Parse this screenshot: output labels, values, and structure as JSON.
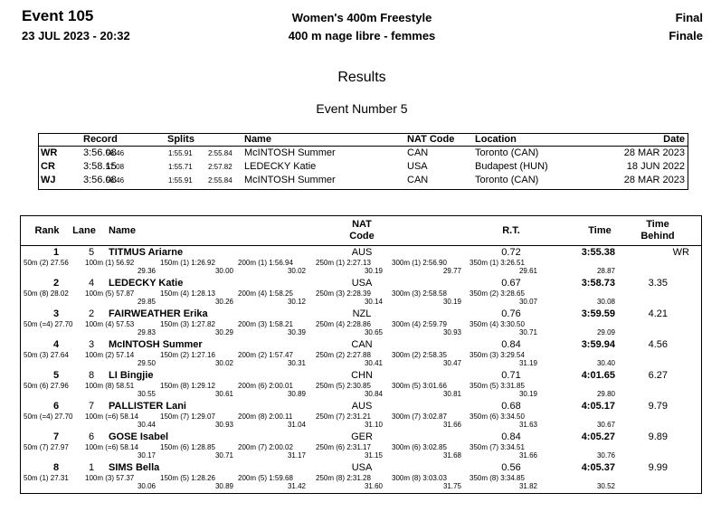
{
  "header": {
    "event": "Event 105",
    "datetime": "23 JUL 2023 - 20:32",
    "title": "Women's 400m Freestyle",
    "title_fr": "400 m nage libre - femmes",
    "round": "Final",
    "round_fr": "Finale"
  },
  "section": "Results",
  "event_number": "Event Number 5",
  "records": {
    "headers": [
      "Record",
      "Splits",
      "Name",
      "NAT Code",
      "Location",
      "Date"
    ],
    "rows": [
      {
        "code": "WR",
        "time": "3:56.08",
        "splits": [
          "56.46",
          "1:55.91",
          "2:55.84"
        ],
        "name": "McINTOSH Summer",
        "nat": "CAN",
        "location": "Toronto (CAN)",
        "date": "28 MAR 2023"
      },
      {
        "code": "CR",
        "time": "3:58.15",
        "splits": [
          "57.08",
          "1:55.71",
          "2:57.82"
        ],
        "name": "LEDECKY Katie",
        "nat": "USA",
        "location": "Budapest (HUN)",
        "date": "18 JUN 2022"
      },
      {
        "code": "WJ",
        "time": "3:56.08",
        "splits": [
          "56.46",
          "1:55.91",
          "2:55.84"
        ],
        "name": "McINTOSH Summer",
        "nat": "CAN",
        "location": "Toronto (CAN)",
        "date": "28 MAR 2023"
      }
    ]
  },
  "results": {
    "headers": {
      "rank": "Rank",
      "lane": "Lane",
      "name": "Name",
      "nat": [
        "NAT",
        "Code"
      ],
      "rt": "R.T.",
      "time": "Time",
      "behind": [
        "Time",
        "Behind"
      ]
    },
    "rows": [
      {
        "rank": "1",
        "lane": "5",
        "name": "TITMUS Ariarne",
        "nat": "AUS",
        "rt": "0.72",
        "time": "3:55.38",
        "record": "WR",
        "first": "50m (2) 27.56",
        "splits": [
          [
            "100m (1) 56.92",
            "29.36"
          ],
          [
            "150m (1) 1:26.92",
            "30.00"
          ],
          [
            "200m (1) 1:56.94",
            "30.02"
          ],
          [
            "250m (1) 2:27.13",
            "30.19"
          ],
          [
            "300m (1) 2:56.90",
            "29.77"
          ],
          [
            "350m (1) 3:26.51",
            "29.61"
          ]
        ],
        "last": "28.87"
      },
      {
        "rank": "2",
        "lane": "4",
        "name": "LEDECKY Katie",
        "nat": "USA",
        "rt": "0.67",
        "time": "3:58.73",
        "behind": "3.35",
        "first": "50m (8) 28.02",
        "splits": [
          [
            "100m (5) 57.87",
            "29.85"
          ],
          [
            "150m (4) 1:28.13",
            "30.26"
          ],
          [
            "200m (4) 1:58.25",
            "30.12"
          ],
          [
            "250m (3) 2:28.39",
            "30.14"
          ],
          [
            "300m (3) 2:58.58",
            "30.19"
          ],
          [
            "350m (2) 3:28.65",
            "30.07"
          ]
        ],
        "last": "30.08"
      },
      {
        "rank": "3",
        "lane": "2",
        "name": "FAIRWEATHER Erika",
        "nat": "NZL",
        "rt": "0.76",
        "time": "3:59.59",
        "behind": "4.21",
        "first": "50m (=4) 27.70",
        "splits": [
          [
            "100m (4) 57.53",
            "29.83"
          ],
          [
            "150m (3) 1:27.82",
            "30.29"
          ],
          [
            "200m (3) 1:58.21",
            "30.39"
          ],
          [
            "250m (4) 2:28.86",
            "30.65"
          ],
          [
            "300m (4) 2:59.79",
            "30.93"
          ],
          [
            "350m (4) 3:30.50",
            "30.71"
          ]
        ],
        "last": "29.09"
      },
      {
        "rank": "4",
        "lane": "3",
        "name": "McINTOSH Summer",
        "nat": "CAN",
        "rt": "0.84",
        "time": "3:59.94",
        "behind": "4.56",
        "first": "50m (3) 27.64",
        "splits": [
          [
            "100m (2) 57.14",
            "29.50"
          ],
          [
            "150m (2) 1:27.16",
            "30.02"
          ],
          [
            "200m (2) 1:57.47",
            "30.31"
          ],
          [
            "250m (2) 2:27.88",
            "30.41"
          ],
          [
            "300m (2) 2:58.35",
            "30.47"
          ],
          [
            "350m (3) 3:29.54",
            "31.19"
          ]
        ],
        "last": "30.40"
      },
      {
        "rank": "5",
        "lane": "8",
        "name": "LI Bingjie",
        "nat": "CHN",
        "rt": "0.71",
        "time": "4:01.65",
        "behind": "6.27",
        "first": "50m (6) 27.96",
        "splits": [
          [
            "100m (8) 58.51",
            "30.55"
          ],
          [
            "150m (8) 1:29.12",
            "30.61"
          ],
          [
            "200m (6) 2:00.01",
            "30.89"
          ],
          [
            "250m (5) 2:30.85",
            "30.84"
          ],
          [
            "300m (5) 3:01.66",
            "30.81"
          ],
          [
            "350m (5) 3:31.85",
            "30.19"
          ]
        ],
        "last": "29.80"
      },
      {
        "rank": "6",
        "lane": "7",
        "name": "PALLISTER Lani",
        "nat": "AUS",
        "rt": "0.68",
        "time": "4:05.17",
        "behind": "9.79",
        "first": "50m (=4) 27.70",
        "splits": [
          [
            "100m (=6) 58.14",
            "30.44"
          ],
          [
            "150m (7) 1:29.07",
            "30.93"
          ],
          [
            "200m (8) 2:00.11",
            "31.04"
          ],
          [
            "250m (7) 2:31.21",
            "31.10"
          ],
          [
            "300m (7) 3:02.87",
            "31.66"
          ],
          [
            "350m (6) 3:34.50",
            "31.63"
          ]
        ],
        "last": "30.67"
      },
      {
        "rank": "7",
        "lane": "6",
        "name": "GOSE Isabel",
        "nat": "GER",
        "rt": "0.84",
        "time": "4:05.27",
        "behind": "9.89",
        "first": "50m (7) 27.97",
        "splits": [
          [
            "100m (=6) 58.14",
            "30.17"
          ],
          [
            "150m (6) 1:28.85",
            "30.71"
          ],
          [
            "200m (7) 2:00.02",
            "31.17"
          ],
          [
            "250m (6) 2:31.17",
            "31.15"
          ],
          [
            "300m (6) 3:02.85",
            "31.68"
          ],
          [
            "350m (7) 3:34.51",
            "31.66"
          ]
        ],
        "last": "30.76"
      },
      {
        "rank": "8",
        "lane": "1",
        "name": "SIMS Bella",
        "nat": "USA",
        "rt": "0.56",
        "time": "4:05.37",
        "behind": "9.99",
        "first": "50m (1) 27.31",
        "splits": [
          [
            "100m (3) 57.37",
            "30.06"
          ],
          [
            "150m (5) 1:28.26",
            "30.89"
          ],
          [
            "200m (5) 1:59.68",
            "31.42"
          ],
          [
            "250m (8) 2:31.28",
            "31.60"
          ],
          [
            "300m (8) 3:03.03",
            "31.75"
          ],
          [
            "350m (8) 3:34.85",
            "31.82"
          ]
        ],
        "last": "30.52"
      }
    ]
  }
}
